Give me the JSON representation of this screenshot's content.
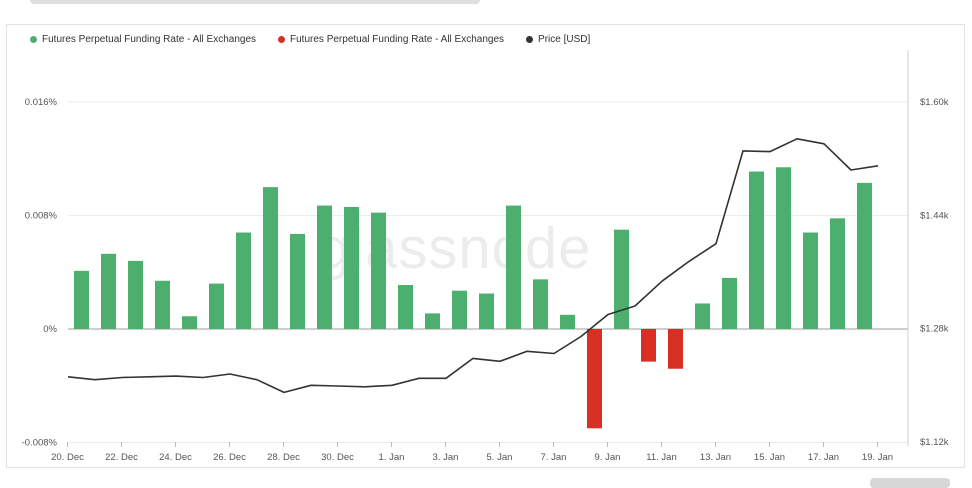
{
  "chart_data": {
    "type": "bar",
    "watermark": "glassnode",
    "legend": [
      {
        "label": "Futures Perpetual Funding Rate - All Exchanges",
        "color": "#4caf6e"
      },
      {
        "label": "Futures Perpetual Funding Rate - All Exchanges",
        "color": "#d93025"
      },
      {
        "label": "Price [USD]",
        "color": "#333333"
      }
    ],
    "x_ticks": [
      "20. Dec",
      "22. Dec",
      "24. Dec",
      "26. Dec",
      "28. Dec",
      "30. Dec",
      "1. Jan",
      "3. Jan",
      "5. Jan",
      "7. Jan",
      "9. Jan",
      "11. Jan",
      "13. Jan",
      "15. Jan",
      "17. Jan",
      "19. Jan"
    ],
    "y_left_ticks": [
      "0.016%",
      "0.008%",
      "0%",
      "-0.008%"
    ],
    "y_left_values": [
      0.016,
      0.008,
      0,
      -0.008
    ],
    "y_right_ticks": [
      "$1.60k",
      "$1.44k",
      "$1.28k",
      "$1.12k"
    ],
    "y_right_values": [
      1600,
      1440,
      1280,
      1120
    ],
    "ylim_left": [
      -0.008,
      0.016
    ],
    "ylim_right": [
      1120,
      1600
    ],
    "bars": [
      0.0041,
      0.0053,
      0.0048,
      0.0034,
      0.0009,
      0.0032,
      0.0068,
      0.01,
      0.0067,
      0.0087,
      0.0086,
      0.0082,
      0.0031,
      0.0011,
      0.0027,
      0.0025,
      0.0087,
      0.0035,
      0.001,
      -0.007,
      0.007,
      -0.0023,
      -0.0028,
      0.0018,
      0.0036,
      0.0111,
      0.0114,
      0.0068,
      0.0078,
      0.0103
    ],
    "price": [
      1212,
      1208,
      1211,
      1212,
      1213,
      1211,
      1216,
      1208,
      1190,
      1200,
      1199,
      1198,
      1200,
      1210,
      1210,
      1238,
      1234,
      1248,
      1245,
      1269,
      1300,
      1312,
      1347,
      1375,
      1400,
      1531,
      1530,
      1548,
      1541,
      1504,
      1510
    ]
  }
}
